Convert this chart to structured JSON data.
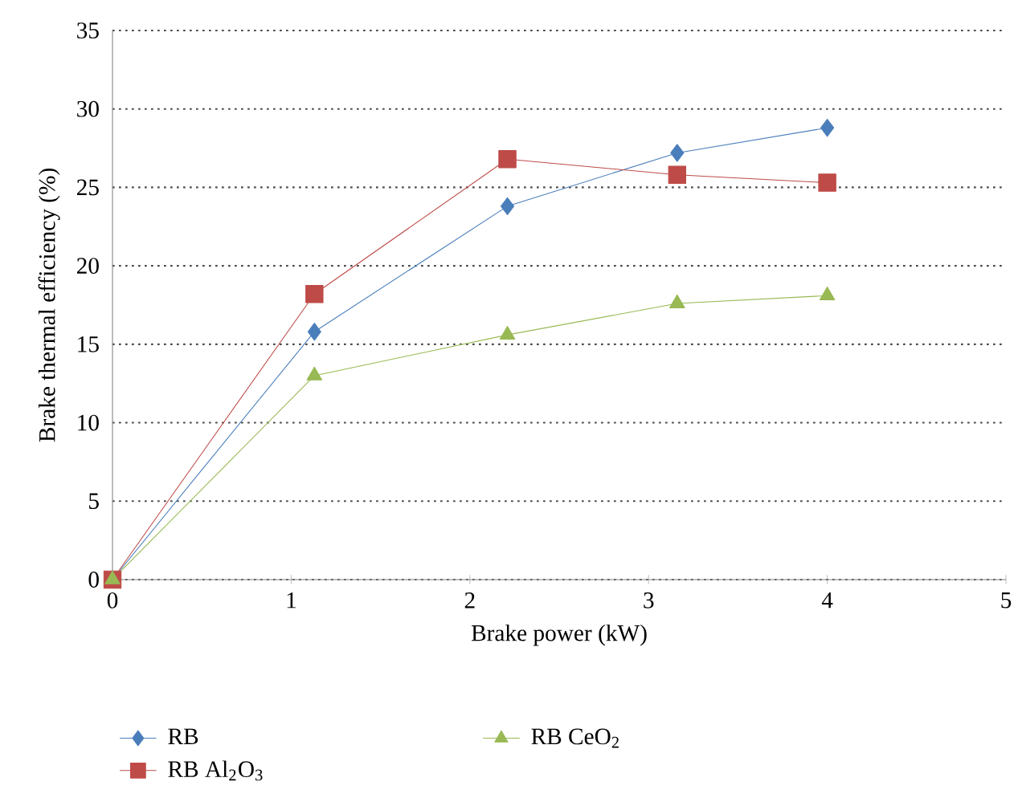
{
  "chart_data": {
    "type": "line",
    "xlabel": "Brake power (kW)",
    "ylabel": "Brake thermal efficiency (%)",
    "xlim": [
      0,
      5
    ],
    "xticks": [
      0,
      1,
      2,
      3,
      4,
      5
    ],
    "ylim": [
      0,
      35
    ],
    "yticks": [
      0,
      5,
      10,
      15,
      20,
      25,
      30,
      35
    ],
    "grid": "y",
    "legend": "bottom",
    "line_style": "solid",
    "series": [
      {
        "name": "RB",
        "color": "#4a7ebb",
        "marker": "diamond",
        "x": [
          0,
          1.13,
          2.21,
          3.16,
          4.0
        ],
        "values": [
          0,
          15.8,
          23.8,
          27.2,
          28.8
        ]
      },
      {
        "name": "RB Al$_{2}$O$_{3}$",
        "color": "#be4b48",
        "marker": "square",
        "x": [
          0,
          1.13,
          2.21,
          3.16,
          4.0
        ],
        "values": [
          0,
          18.2,
          26.8,
          25.8,
          25.3
        ]
      },
      {
        "name": "RB CeO$_{2}$",
        "color": "#98b954",
        "marker": "triangle",
        "x": [
          0,
          1.13,
          2.21,
          3.16,
          4.0
        ],
        "values": [
          0,
          13.0,
          15.6,
          17.6,
          18.1
        ]
      }
    ]
  }
}
